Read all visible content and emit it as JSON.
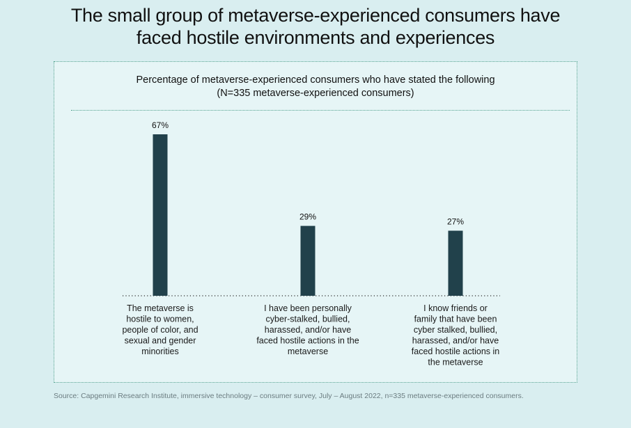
{
  "headline": {
    "line1": "The small group of metaverse-experienced consumers have",
    "line2": "faced hostile environments and experiences"
  },
  "source": "Source: Capgemini Research Institute, immersive technology – consumer survey, July – August 2022, n=335 metaverse-experienced consumers.",
  "chart_data": {
    "type": "bar",
    "title": "Percentage of metaverse-experienced consumers who have stated the following",
    "subtitle": "(N=335 metaverse-experienced consumers)",
    "categories": [
      [
        "The metaverse is",
        "hostile to women,",
        "people of color, and",
        "sexual and gender",
        "minorities"
      ],
      [
        "I have been personally",
        "cyber-stalked, bullied,",
        "harassed, and/or have",
        "faced hostile actions in the",
        "metaverse"
      ],
      [
        "I know friends or",
        "family that have been",
        "cyber stalked, bullied,",
        "harassed, and/or have",
        "faced hostile actions in",
        "the metaverse"
      ]
    ],
    "values": [
      67,
      29,
      27
    ],
    "value_labels": [
      "67%",
      "29%",
      "27%"
    ],
    "unit": "%",
    "ylim": [
      0,
      67
    ],
    "grid": false,
    "legend": "none",
    "bar_color": "#21414b",
    "baseline_color": "#2a2a2a"
  }
}
